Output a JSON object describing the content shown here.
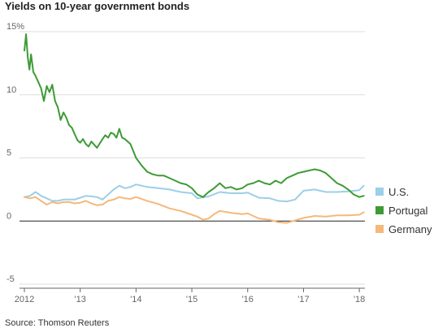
{
  "title": "Yields on 10-year government bonds",
  "source": "Source: Thomson Reuters",
  "chart_data": {
    "type": "line",
    "title": "Yields on 10-year government bonds",
    "xlabel": "",
    "ylabel": "",
    "xlim": [
      2012,
      2018.1
    ],
    "ylim": [
      -5,
      15
    ],
    "y_ticks": [
      -5,
      0,
      5,
      10,
      15
    ],
    "y_tick_labels": [
      "-5",
      "0",
      "5",
      "10",
      "15%"
    ],
    "x_ticks": [
      2012,
      2013,
      2014,
      2015,
      2016,
      2017,
      2018
    ],
    "x_tick_labels": [
      "2012",
      "'13",
      "'14",
      "'15",
      "'16",
      "'17",
      "'18"
    ],
    "grid": true,
    "legend_position": "right",
    "series": [
      {
        "name": "U.S.",
        "color": "#9ccfe8",
        "x": [
          2012.0,
          2012.1,
          2012.2,
          2012.3,
          2012.4,
          2012.5,
          2012.6,
          2012.7,
          2012.8,
          2012.9,
          2013.0,
          2013.1,
          2013.2,
          2013.3,
          2013.4,
          2013.5,
          2013.6,
          2013.7,
          2013.8,
          2013.9,
          2014.0,
          2014.2,
          2014.4,
          2014.6,
          2014.8,
          2015.0,
          2015.1,
          2015.3,
          2015.5,
          2015.7,
          2015.9,
          2016.0,
          2016.2,
          2016.4,
          2016.55,
          2016.7,
          2016.85,
          2017.0,
          2017.2,
          2017.4,
          2017.6,
          2017.8,
          2018.0,
          2018.08
        ],
        "y": [
          1.9,
          2.0,
          2.3,
          2.0,
          1.8,
          1.6,
          1.6,
          1.7,
          1.7,
          1.7,
          1.85,
          2.0,
          1.95,
          1.9,
          1.7,
          2.1,
          2.5,
          2.8,
          2.6,
          2.7,
          2.9,
          2.7,
          2.6,
          2.5,
          2.3,
          2.2,
          1.8,
          1.95,
          2.3,
          2.2,
          2.2,
          2.25,
          1.85,
          1.8,
          1.6,
          1.55,
          1.7,
          2.4,
          2.5,
          2.3,
          2.3,
          2.35,
          2.45,
          2.8
        ]
      },
      {
        "name": "Portugal",
        "color": "#3d9b35",
        "x": [
          2012.0,
          2012.03,
          2012.06,
          2012.09,
          2012.12,
          2012.16,
          2012.2,
          2012.25,
          2012.3,
          2012.35,
          2012.4,
          2012.45,
          2012.5,
          2012.55,
          2012.6,
          2012.65,
          2012.7,
          2012.75,
          2012.8,
          2012.85,
          2012.9,
          2012.95,
          2013.0,
          2013.05,
          2013.1,
          2013.15,
          2013.2,
          2013.3,
          2013.4,
          2013.45,
          2013.5,
          2013.55,
          2013.6,
          2013.65,
          2013.7,
          2013.75,
          2013.8,
          2013.9,
          2014.0,
          2014.1,
          2014.2,
          2014.3,
          2014.4,
          2014.5,
          2014.6,
          2014.7,
          2014.8,
          2014.9,
          2015.0,
          2015.1,
          2015.2,
          2015.3,
          2015.4,
          2015.5,
          2015.6,
          2015.7,
          2015.8,
          2015.9,
          2016.0,
          2016.1,
          2016.2,
          2016.3,
          2016.4,
          2016.5,
          2016.6,
          2016.7,
          2016.8,
          2016.9,
          2017.0,
          2017.1,
          2017.2,
          2017.3,
          2017.4,
          2017.5,
          2017.6,
          2017.7,
          2017.8,
          2017.9,
          2018.0,
          2018.08
        ],
        "y": [
          13.5,
          14.8,
          13.0,
          12.0,
          13.2,
          11.8,
          11.5,
          11.0,
          10.5,
          9.5,
          10.7,
          10.2,
          10.8,
          9.5,
          9.0,
          8.0,
          8.6,
          8.2,
          7.6,
          7.4,
          6.9,
          6.4,
          6.2,
          6.5,
          6.1,
          5.9,
          6.3,
          5.8,
          6.5,
          6.8,
          6.6,
          7.0,
          6.9,
          6.6,
          7.3,
          6.6,
          6.5,
          6.1,
          5.0,
          4.4,
          3.9,
          3.7,
          3.6,
          3.6,
          3.4,
          3.2,
          3.0,
          2.9,
          2.6,
          2.1,
          1.9,
          2.3,
          2.6,
          3.0,
          2.6,
          2.7,
          2.5,
          2.6,
          2.9,
          3.0,
          3.2,
          3.0,
          2.9,
          3.2,
          3.0,
          3.4,
          3.6,
          3.8,
          3.9,
          4.0,
          4.1,
          4.0,
          3.8,
          3.4,
          3.0,
          2.8,
          2.5,
          2.1,
          1.9,
          2.0
        ]
      },
      {
        "name": "Germany",
        "color": "#f5b87a",
        "x": [
          2012.0,
          2012.1,
          2012.2,
          2012.3,
          2012.4,
          2012.5,
          2012.6,
          2012.7,
          2012.8,
          2012.9,
          2013.0,
          2013.1,
          2013.2,
          2013.3,
          2013.4,
          2013.5,
          2013.6,
          2013.7,
          2013.8,
          2013.9,
          2014.0,
          2014.2,
          2014.4,
          2014.6,
          2014.8,
          2015.0,
          2015.1,
          2015.2,
          2015.3,
          2015.4,
          2015.5,
          2015.7,
          2015.9,
          2016.0,
          2016.2,
          2016.4,
          2016.55,
          2016.7,
          2016.85,
          2017.0,
          2017.2,
          2017.4,
          2017.6,
          2017.8,
          2018.0,
          2018.08
        ],
        "y": [
          1.9,
          1.8,
          1.9,
          1.6,
          1.3,
          1.5,
          1.4,
          1.5,
          1.5,
          1.4,
          1.45,
          1.6,
          1.4,
          1.25,
          1.3,
          1.6,
          1.7,
          1.9,
          1.8,
          1.75,
          1.9,
          1.6,
          1.35,
          1.0,
          0.8,
          0.5,
          0.35,
          0.1,
          0.2,
          0.55,
          0.8,
          0.65,
          0.55,
          0.6,
          0.2,
          0.1,
          -0.1,
          -0.15,
          0.05,
          0.25,
          0.4,
          0.35,
          0.45,
          0.45,
          0.5,
          0.7
        ]
      }
    ]
  }
}
